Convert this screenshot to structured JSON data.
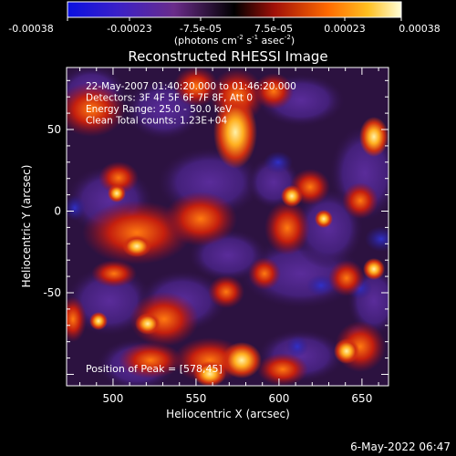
{
  "colorbar": {
    "tick_labels": [
      "-0.00038",
      "-0.00023",
      "-7.5e-05",
      "7.5e-05",
      "0.00023",
      "0.00038"
    ],
    "range": [
      -0.00038,
      0.00038
    ],
    "unit_label": "(photons cm",
    "unit_exp1": "-2",
    "unit_mid": " s",
    "unit_exp2": "-1",
    "unit_mid2": " asec",
    "unit_exp3": "-2",
    "unit_close": ")"
  },
  "image": {
    "title": "Reconstructed RHESSI Image",
    "info_lines": [
      "22-May-2007 01:40:20.000 to 01:46:20.000",
      "Detectors: 3F 4F 5F 6F 7F 8F, Att 0",
      "Energy Range: 25.0 - 50.0 keV",
      "Clean     Total counts: 1.23E+04"
    ],
    "peak_text": "Position of Peak = [578,45]",
    "peak": {
      "x": 578,
      "y": 45
    }
  },
  "axes": {
    "xlabel": "Heliocentric X (arcsec)",
    "ylabel": "Heliocentric Y (arcsec)",
    "xlim": [
      472,
      666
    ],
    "ylim": [
      -107,
      88
    ],
    "xticks": [
      "500",
      "550",
      "600",
      "650"
    ],
    "yticks": [
      "50",
      "0",
      "-50"
    ]
  },
  "footer": {
    "timestamp": "6-May-2022 06:47"
  }
}
